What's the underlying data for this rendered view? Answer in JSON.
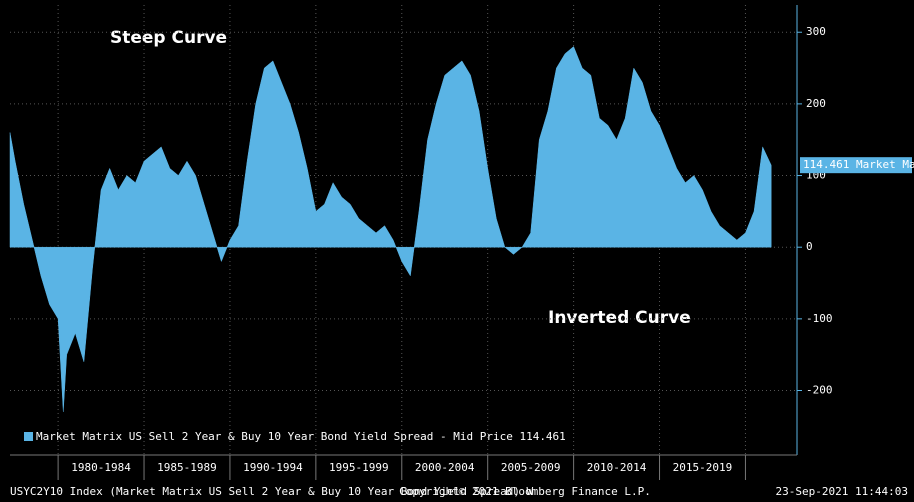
{
  "chart_data": {
    "type": "area",
    "annotations": [
      "Steep Curve",
      "Inverted Curve"
    ],
    "last_label": "114.461 Market Ma",
    "footer_left": "USYC2Y10 Index (Market Matrix US Sell 2 Year & Buy 10 Year Bond Yield Spread)  W",
    "footer_center": "Copyright© 2021 Bloomberg Finance L.P.",
    "footer_right": "23-Sep-2021 11:44:03",
    "x": [
      1977.2,
      1977.5,
      1978,
      1978.5,
      1979,
      1979.5,
      1980,
      1980.3,
      1980.5,
      1981,
      1981.5,
      1982,
      1982.5,
      1983,
      1983.5,
      1984,
      1984.5,
      1985,
      1985.5,
      1986,
      1986.5,
      1987,
      1987.5,
      1988,
      1988.5,
      1989,
      1989.5,
      1990,
      1990.5,
      1991,
      1991.5,
      1992,
      1992.5,
      1993,
      1993.5,
      1994,
      1994.5,
      1995,
      1995.5,
      1996,
      1996.5,
      1997,
      1997.5,
      1998,
      1998.5,
      1999,
      1999.5,
      2000,
      2000.5,
      2001,
      2001.5,
      2002,
      2002.5,
      2003,
      2003.5,
      2004,
      2004.5,
      2005,
      2005.5,
      2006,
      2006.5,
      2007,
      2007.5,
      2008,
      2008.5,
      2009,
      2009.5,
      2010,
      2010.5,
      2011,
      2011.5,
      2012,
      2012.5,
      2013,
      2013.5,
      2014,
      2014.5,
      2015,
      2015.5,
      2016,
      2016.5,
      2017,
      2017.5,
      2018,
      2018.5,
      2019,
      2019.5,
      2020,
      2020.5,
      2021,
      2021.5
    ],
    "series": [
      {
        "name": "Market Matrix US Sell 2 Year & Buy 10 Year Bond Yield Spread - Mid Price 114.461",
        "color": "#5ab4e5",
        "values": [
          160,
          120,
          60,
          10,
          -40,
          -80,
          -100,
          -230,
          -150,
          -120,
          -160,
          -30,
          80,
          110,
          80,
          100,
          90,
          120,
          130,
          140,
          110,
          100,
          120,
          100,
          60,
          20,
          -20,
          10,
          30,
          120,
          200,
          250,
          260,
          230,
          200,
          160,
          110,
          50,
          60,
          90,
          70,
          60,
          40,
          30,
          20,
          30,
          10,
          -20,
          -40,
          50,
          150,
          200,
          240,
          250,
          260,
          240,
          190,
          110,
          40,
          0,
          -10,
          0,
          20,
          150,
          190,
          250,
          270,
          280,
          250,
          240,
          180,
          170,
          150,
          180,
          250,
          230,
          190,
          170,
          140,
          110,
          90,
          100,
          80,
          50,
          30,
          20,
          10,
          20,
          50,
          140,
          114.461
        ]
      }
    ],
    "xlim": [
      1977.2,
      2023.0
    ],
    "xticks": [
      1980,
      1985,
      1990,
      1995,
      2000,
      2005,
      2010,
      2015,
      2020
    ],
    "period_labels": [
      {
        "value": 1982.5,
        "label": "1980-1984"
      },
      {
        "value": 1987.5,
        "label": "1985-1989"
      },
      {
        "value": 1992.5,
        "label": "1990-1994"
      },
      {
        "value": 1997.5,
        "label": "1995-1999"
      },
      {
        "value": 2002.5,
        "label": "2000-2004"
      },
      {
        "value": 2007.5,
        "label": "2005-2009"
      },
      {
        "value": 2012.5,
        "label": "2010-2014"
      },
      {
        "value": 2017.5,
        "label": "2015-2019"
      }
    ],
    "ylim": [
      -290,
      338
    ],
    "yticks": [
      300,
      200,
      100,
      0,
      -100,
      -200
    ],
    "grid": true
  }
}
